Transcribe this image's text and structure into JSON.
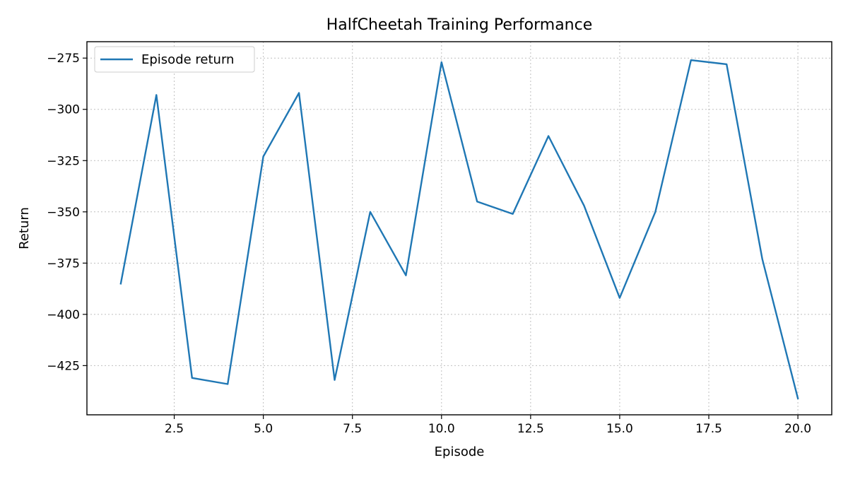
{
  "chart_data": {
    "type": "line",
    "title": "HalfCheetah Training Performance",
    "xlabel": "Episode",
    "ylabel": "Return",
    "xlim": [
      0.05,
      20.95
    ],
    "ylim": [
      -449,
      -267
    ],
    "xticks": [
      2.5,
      5.0,
      7.5,
      10.0,
      12.5,
      15.0,
      17.5,
      20.0
    ],
    "xtick_labels": [
      "2.5",
      "5.0",
      "7.5",
      "10.0",
      "12.5",
      "15.0",
      "17.5",
      "20.0"
    ],
    "yticks": [
      -275,
      -300,
      -325,
      -350,
      -375,
      -400,
      -425
    ],
    "ytick_labels": [
      "−275",
      "−300",
      "−325",
      "−350",
      "−375",
      "−400",
      "−425"
    ],
    "grid": true,
    "legend_position": "upper-left",
    "series": [
      {
        "name": "Episode return",
        "color": "#1f77b4",
        "x": [
          1,
          2,
          3,
          4,
          5,
          6,
          7,
          8,
          9,
          10,
          11,
          12,
          13,
          14,
          15,
          16,
          17,
          18,
          19,
          20
        ],
        "y": [
          -385,
          -293,
          -431,
          -434,
          -323,
          -292,
          -432,
          -350,
          -381,
          -277,
          -345,
          -351,
          -313,
          -347,
          -392,
          -350,
          -276,
          -278,
          -373,
          -441
        ]
      }
    ]
  }
}
